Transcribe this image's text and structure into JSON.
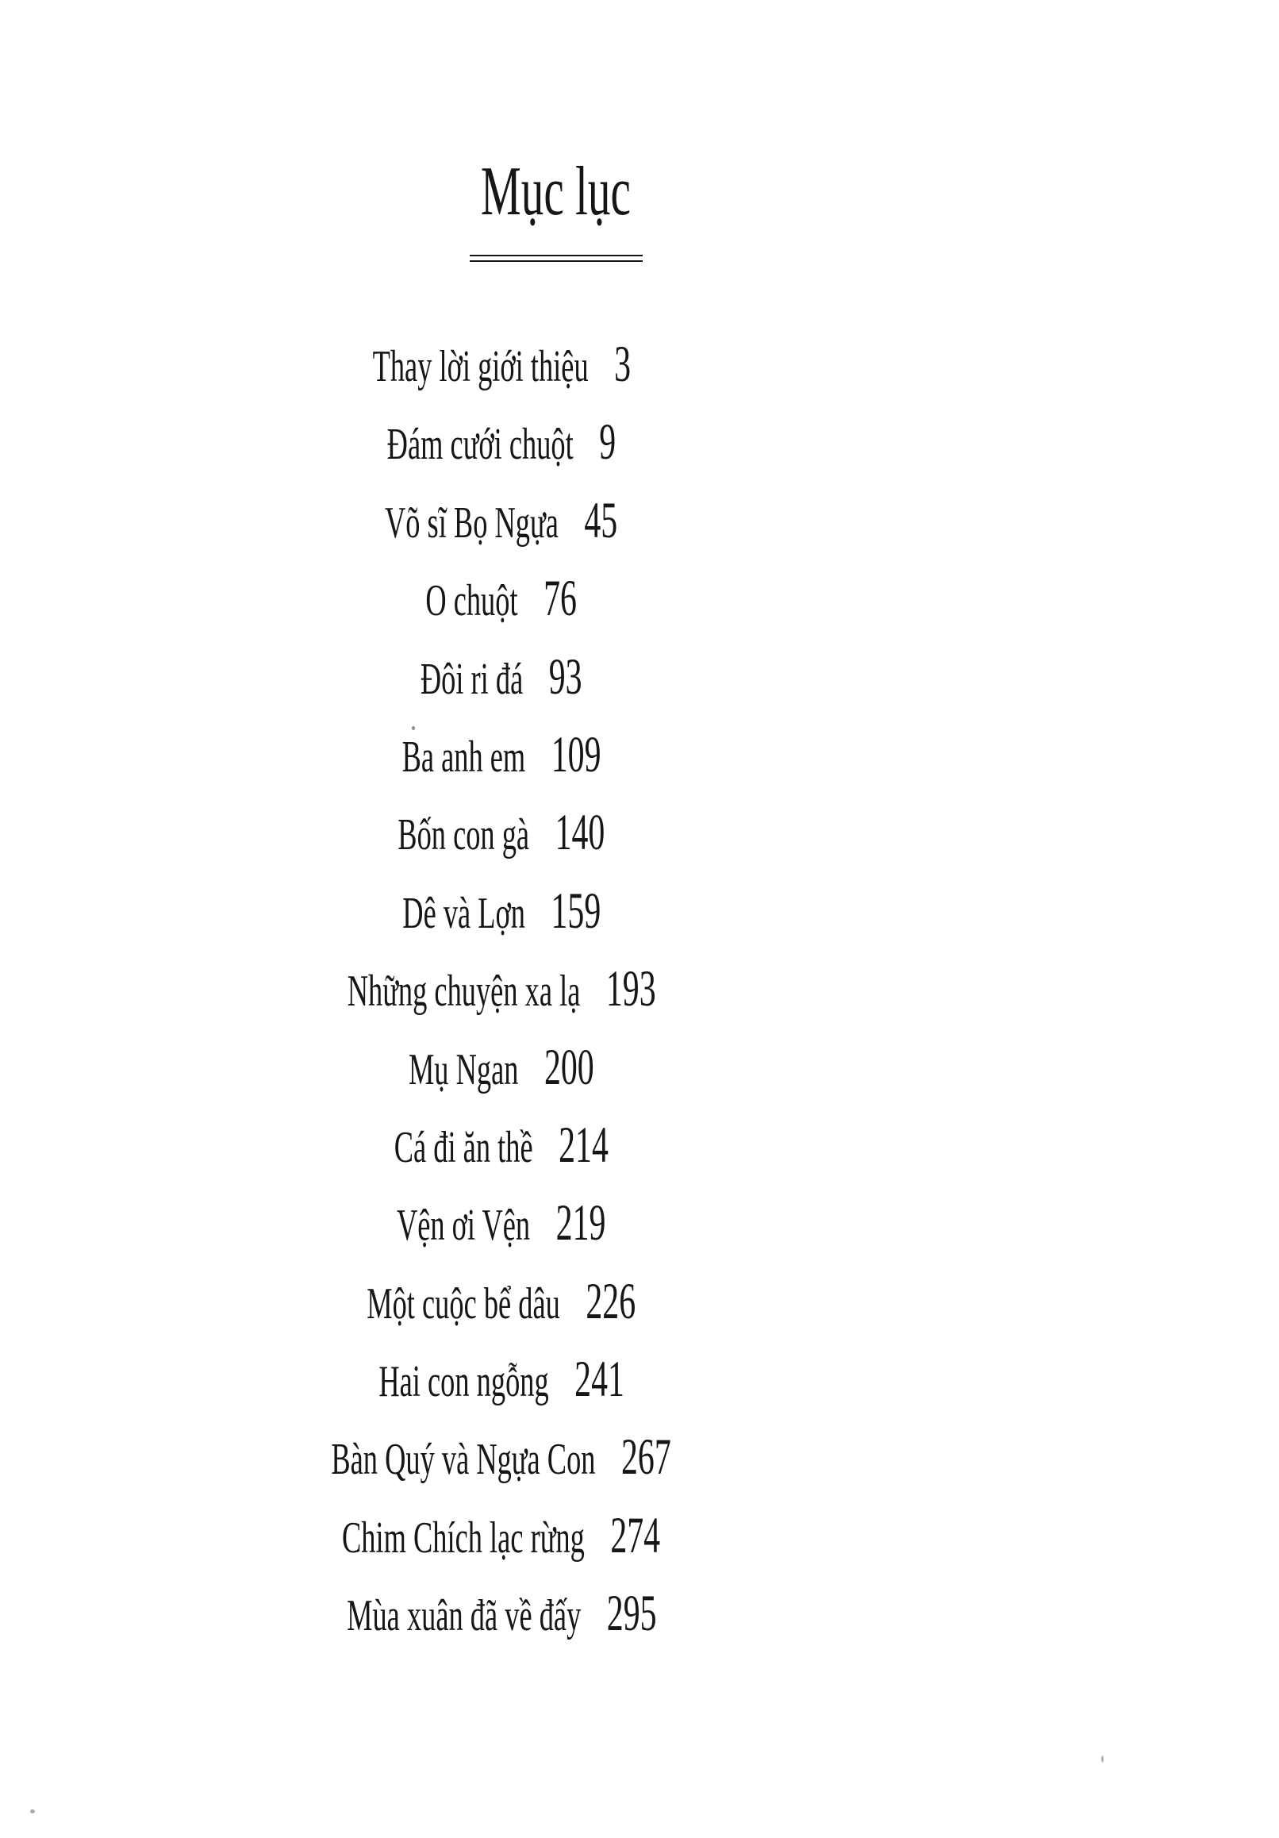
{
  "page": {
    "title": "Mục lục",
    "entries": [
      {
        "title": "Thay lời giới thiệu",
        "page": "3"
      },
      {
        "title": "Đám cưới chuột",
        "page": "9"
      },
      {
        "title": "Võ sĩ Bọ Ngựa",
        "page": "45"
      },
      {
        "title": "O chuột",
        "page": "76"
      },
      {
        "title": "Đôi ri đá",
        "page": "93"
      },
      {
        "title": "Ba anh em",
        "page": "109"
      },
      {
        "title": "Bốn con gà",
        "page": "140"
      },
      {
        "title": "Dê và Lợn",
        "page": "159"
      },
      {
        "title": "Những chuyện xa lạ",
        "page": "193"
      },
      {
        "title": "Mụ Ngan",
        "page": "200"
      },
      {
        "title": "Cá đi ăn thề",
        "page": "214"
      },
      {
        "title": "Vện ơi Vện",
        "page": "219"
      },
      {
        "title": "Một cuộc bể dâu",
        "page": "226"
      },
      {
        "title": "Hai con ngỗng",
        "page": "241"
      },
      {
        "title": "Bàn Quý và Ngựa Con",
        "page": "267"
      },
      {
        "title": "Chim Chích lạc rừng",
        "page": "274"
      },
      {
        "title": "Mùa xuân đã về đấy",
        "page": "295"
      }
    ],
    "colors": {
      "ink": "#161616",
      "paper": "#ffffff"
    }
  }
}
